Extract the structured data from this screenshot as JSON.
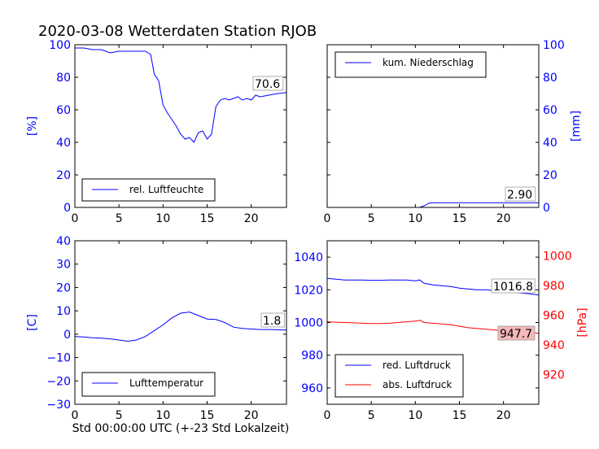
{
  "title": "2020-03-08 Wetterdaten Station RJOB",
  "xlabel": "Std 00:00:00 UTC (+-23 Std Lokalzeit)",
  "colors": {
    "blue": "#0000ff",
    "red": "#ff0000",
    "label_bg": "#f4b8b8"
  },
  "chart_data": [
    {
      "type": "line",
      "title": "",
      "xlabel": "",
      "ylabel": "[%]",
      "xlim": [
        0,
        24
      ],
      "ylim": [
        0,
        100
      ],
      "xticks": [
        0,
        5,
        10,
        15,
        20
      ],
      "yticks": [
        0,
        20,
        40,
        60,
        80,
        100
      ],
      "legend": "lower-left",
      "value_label": "70.6",
      "series": [
        {
          "name": "rel. Luftfeuchte",
          "color": "#0000ff",
          "x": [
            0,
            1,
            2,
            3,
            4,
            5,
            6,
            7,
            8,
            8.6,
            9,
            9.5,
            10,
            10.5,
            11,
            11.5,
            12,
            12.5,
            13,
            13.5,
            14,
            14.5,
            15,
            15.5,
            16,
            16.5,
            17,
            17.5,
            18,
            18.5,
            19,
            19.5,
            20,
            20.5,
            21,
            22,
            23,
            24
          ],
          "y": [
            98,
            98,
            97,
            97,
            95,
            96,
            96,
            96,
            96,
            94,
            82,
            78,
            63,
            58,
            54,
            50,
            45,
            42,
            43,
            40,
            46,
            47,
            42,
            45,
            62,
            66,
            67,
            66,
            67,
            68,
            66,
            67,
            66,
            69,
            68,
            69,
            70,
            70.6
          ]
        }
      ]
    },
    {
      "type": "line",
      "title": "",
      "xlabel": "",
      "ylabel": "[mm]",
      "xlim": [
        0,
        24
      ],
      "ylim": [
        0,
        100
      ],
      "xticks": [
        0,
        5,
        10,
        15,
        20
      ],
      "yticks": [
        0,
        20,
        40,
        60,
        80,
        100
      ],
      "legend": "upper-left",
      "value_label": "2.90",
      "series": [
        {
          "name": "kum. Niederschlag",
          "color": "#0000ff",
          "x": [
            0,
            10.5,
            11,
            11.5,
            12,
            24
          ],
          "y": [
            0,
            0,
            1,
            2.5,
            2.9,
            2.9
          ]
        }
      ]
    },
    {
      "type": "line",
      "title": "",
      "xlabel": "",
      "ylabel": "[C]",
      "xlim": [
        0,
        24
      ],
      "ylim": [
        -30,
        40
      ],
      "xticks": [
        0,
        5,
        10,
        15,
        20
      ],
      "yticks": [
        -30,
        -20,
        -10,
        0,
        10,
        20,
        30,
        40
      ],
      "legend": "lower-left",
      "value_label": "1.8",
      "series": [
        {
          "name": "Lufttemperatur",
          "color": "#0000ff",
          "x": [
            0,
            1,
            2,
            3,
            4,
            5,
            6,
            7,
            8,
            9,
            10,
            11,
            12,
            13,
            14,
            15,
            16,
            17,
            18,
            19,
            20,
            21,
            22,
            23,
            24
          ],
          "y": [
            -1,
            -1.2,
            -1.5,
            -1.7,
            -2,
            -2.5,
            -3,
            -2.5,
            -1,
            1.5,
            4,
            7,
            9,
            9.5,
            8,
            6.5,
            6.3,
            5,
            3,
            2.5,
            2.2,
            2,
            2,
            1.9,
            1.8
          ]
        }
      ]
    },
    {
      "type": "line",
      "title": "",
      "xlabel": "",
      "ylabel": "[hPa]",
      "xlim": [
        0,
        24
      ],
      "ylim": [
        950,
        1050
      ],
      "y2lim": [
        900,
        1010
      ],
      "xticks": [
        0,
        5,
        10,
        15,
        20
      ],
      "yticks": [
        960,
        980,
        1000,
        1020,
        1040
      ],
      "y2ticks": [
        920,
        940,
        960,
        980,
        1000
      ],
      "legend": "lower-left",
      "value_label": "1016.8",
      "value_label2": "947.7",
      "series": [
        {
          "name": "red. Luftdruck",
          "color": "#0000ff",
          "axis": "left",
          "x": [
            0,
            1,
            2,
            3,
            4,
            5,
            6,
            7,
            8,
            9,
            10,
            10.5,
            11,
            12,
            13,
            14,
            15,
            16,
            17,
            18,
            19,
            20,
            21,
            22,
            23,
            24
          ],
          "y": [
            1027,
            1026.5,
            1026,
            1026,
            1026,
            1025.8,
            1025.8,
            1026,
            1026,
            1026,
            1025.5,
            1026,
            1024,
            1023,
            1022.5,
            1022,
            1021,
            1020.5,
            1020,
            1020,
            1019.5,
            1019,
            1018.5,
            1018,
            1017.5,
            1016.8
          ]
        },
        {
          "name": "abs. Luftdruck",
          "color": "#ff0000",
          "axis": "right",
          "x": [
            0,
            1,
            2,
            3,
            4,
            5,
            6,
            7,
            8,
            9,
            10,
            10.5,
            11,
            12,
            13,
            14,
            15,
            16,
            17,
            18,
            19,
            20,
            21,
            22,
            23,
            24
          ],
          "y": [
            955.5,
            955.2,
            955,
            954.8,
            954.5,
            954.3,
            954.3,
            954.5,
            955,
            955.5,
            956,
            956.5,
            955,
            954.5,
            954,
            953.5,
            952.5,
            951.5,
            951,
            950.5,
            950,
            949.5,
            949,
            948.5,
            948.2,
            947.7
          ]
        }
      ]
    }
  ]
}
